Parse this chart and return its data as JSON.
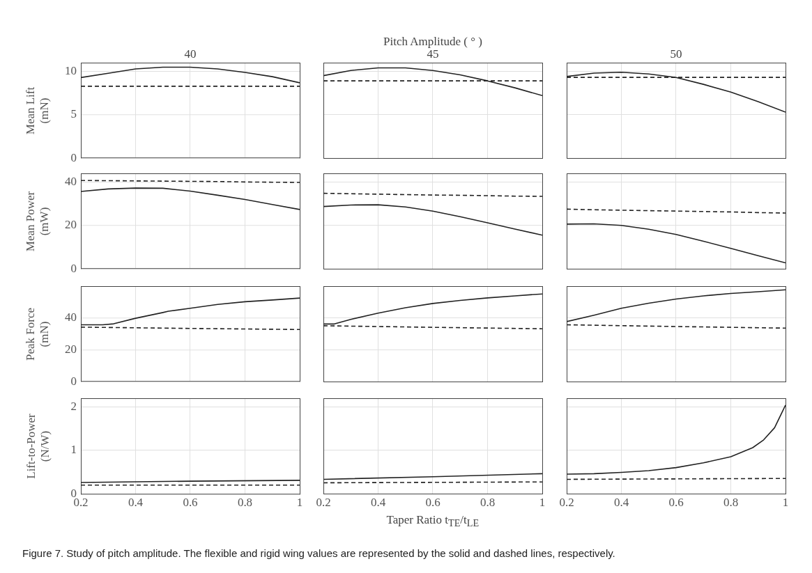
{
  "chart_data": [
    {
      "type": "line",
      "title": null,
      "subtitle": "40",
      "ylabel": "Mean Lift (mN)",
      "x": [
        0.2,
        0.3,
        0.4,
        0.5,
        0.6,
        0.7,
        0.8,
        0.9,
        1
      ],
      "xlim": [
        0.2,
        1
      ],
      "xticks": [
        0.2,
        0.4,
        0.6,
        0.8,
        1
      ],
      "ylim": [
        0,
        11
      ],
      "yticks": [
        0,
        5,
        10
      ],
      "grid": true,
      "marker": "none",
      "tick_labels": "y",
      "series": [
        {
          "color": "#222222",
          "line_style": "solid",
          "values": [
            9.3,
            9.8,
            10.3,
            10.5,
            10.5,
            10.3,
            9.9,
            9.4,
            8.7
          ]
        },
        {
          "color": "#222222",
          "line_style": "dashed",
          "values": [
            8.3,
            8.3,
            8.3,
            8.3,
            8.3,
            8.3,
            8.3,
            8.3,
            8.3
          ]
        }
      ]
    },
    {
      "type": "line",
      "title": "Pitch Amplitude ( ° )",
      "subtitle": "45",
      "x": [
        0.2,
        0.3,
        0.4,
        0.5,
        0.6,
        0.7,
        0.8,
        0.9,
        1
      ],
      "xlim": [
        0.2,
        1
      ],
      "xticks": [
        0.2,
        0.4,
        0.6,
        0.8,
        1
      ],
      "ylim": [
        0,
        11
      ],
      "yticks": [
        0,
        5,
        10
      ],
      "grid": true,
      "marker": "none",
      "tick_labels": false,
      "series": [
        {
          "color": "#222222",
          "line_style": "solid",
          "values": [
            9.5,
            10.1,
            10.4,
            10.4,
            10.1,
            9.6,
            8.9,
            8.1,
            7.2
          ]
        },
        {
          "color": "#222222",
          "line_style": "dashed",
          "values": [
            8.9,
            8.9,
            8.9,
            8.9,
            8.9,
            8.9,
            8.9,
            8.9,
            8.9
          ]
        }
      ]
    },
    {
      "type": "line",
      "subtitle": "50",
      "x": [
        0.2,
        0.3,
        0.4,
        0.5,
        0.6,
        0.7,
        0.8,
        0.9,
        1
      ],
      "xlim": [
        0.2,
        1
      ],
      "xticks": [
        0.2,
        0.4,
        0.6,
        0.8,
        1
      ],
      "ylim": [
        0,
        11
      ],
      "yticks": [
        0,
        5,
        10
      ],
      "grid": true,
      "marker": "none",
      "tick_labels": false,
      "series": [
        {
          "color": "#222222",
          "line_style": "solid",
          "values": [
            9.4,
            9.8,
            9.9,
            9.7,
            9.3,
            8.5,
            7.6,
            6.5,
            5.3
          ]
        },
        {
          "color": "#222222",
          "line_style": "dashed",
          "values": [
            9.3,
            9.3,
            9.3,
            9.3,
            9.3,
            9.3,
            9.3,
            9.3,
            9.3
          ]
        }
      ]
    },
    {
      "type": "line",
      "ylabel": "Mean Power (mW)",
      "x": [
        0.2,
        0.3,
        0.4,
        0.5,
        0.6,
        0.7,
        0.8,
        0.9,
        1
      ],
      "xlim": [
        0.2,
        1
      ],
      "xticks": [
        0.2,
        0.4,
        0.6,
        0.8,
        1
      ],
      "ylim": [
        0,
        44
      ],
      "yticks": [
        0,
        20,
        40
      ],
      "grid": true,
      "marker": "none",
      "tick_labels": "y",
      "series": [
        {
          "color": "#222222",
          "line_style": "solid",
          "values": [
            35.7,
            36.9,
            37.3,
            37.2,
            35.9,
            34,
            32,
            29.7,
            27.4
          ]
        },
        {
          "color": "#222222",
          "line_style": "dashed",
          "values": [
            40.8,
            40.7,
            40.6,
            40.5,
            40.4,
            40.3,
            40.1,
            40,
            39.9
          ]
        }
      ]
    },
    {
      "type": "line",
      "x": [
        0.2,
        0.3,
        0.4,
        0.5,
        0.6,
        0.7,
        0.8,
        0.9,
        1
      ],
      "xlim": [
        0.2,
        1
      ],
      "xticks": [
        0.2,
        0.4,
        0.6,
        0.8,
        1
      ],
      "ylim": [
        0,
        44
      ],
      "yticks": [
        0,
        20,
        40
      ],
      "grid": true,
      "marker": "none",
      "tick_labels": false,
      "series": [
        {
          "color": "#222222",
          "line_style": "solid",
          "values": [
            28.7,
            29.4,
            29.5,
            28.5,
            26.6,
            24,
            21.2,
            18.3,
            15.5
          ]
        },
        {
          "color": "#222222",
          "line_style": "dashed",
          "values": [
            34.8,
            34.6,
            34.4,
            34.2,
            34,
            33.9,
            33.7,
            33.5,
            33.4
          ]
        }
      ]
    },
    {
      "type": "line",
      "x": [
        0.2,
        0.3,
        0.4,
        0.5,
        0.6,
        0.7,
        0.8,
        0.9,
        1
      ],
      "xlim": [
        0.2,
        1
      ],
      "xticks": [
        0.2,
        0.4,
        0.6,
        0.8,
        1
      ],
      "ylim": [
        0,
        44
      ],
      "yticks": [
        0,
        20,
        40
      ],
      "grid": true,
      "marker": "none",
      "tick_labels": false,
      "series": [
        {
          "color": "#222222",
          "line_style": "solid",
          "values": [
            20.6,
            20.7,
            20,
            18.2,
            15.8,
            12.7,
            9.4,
            6,
            2.7
          ]
        },
        {
          "color": "#222222",
          "line_style": "dashed",
          "values": [
            27.5,
            27.2,
            27,
            26.8,
            26.6,
            26.4,
            26.2,
            25.9,
            25.7
          ]
        }
      ]
    },
    {
      "type": "line",
      "ylabel": "Peak Force (mN)",
      "xlim": [
        0.2,
        1
      ],
      "xticks": [
        0.2,
        0.4,
        0.6,
        0.8,
        1
      ],
      "ylim": [
        0,
        60
      ],
      "yticks": [
        0,
        20,
        40
      ],
      "grid": true,
      "marker": "none",
      "tick_labels": "y",
      "series": [
        {
          "color": "#222222",
          "line_style": "solid",
          "x": [
            0.2,
            0.28,
            0.32,
            0.4,
            0.5,
            0.52,
            0.6,
            0.7,
            0.8,
            0.9,
            1
          ],
          "values": [
            35.8,
            35.8,
            36.4,
            39.9,
            43.5,
            44.3,
            46.2,
            48.6,
            50.3,
            51.4,
            52.6
          ]
        },
        {
          "color": "#222222",
          "line_style": "dashed",
          "x": [
            0.2,
            0.6,
            1
          ],
          "values": [
            34.3,
            33.5,
            32.8
          ]
        }
      ]
    },
    {
      "type": "line",
      "xlim": [
        0.2,
        1
      ],
      "xticks": [
        0.2,
        0.4,
        0.6,
        0.8,
        1
      ],
      "ylim": [
        0,
        60
      ],
      "yticks": [
        0,
        20,
        40
      ],
      "grid": true,
      "marker": "none",
      "tick_labels": false,
      "series": [
        {
          "color": "#222222",
          "line_style": "solid",
          "x": [
            0.2,
            0.24,
            0.3,
            0.4,
            0.5,
            0.6,
            0.7,
            0.8,
            0.9,
            1
          ],
          "values": [
            36.2,
            36.2,
            39.1,
            43,
            46.4,
            49.1,
            51,
            52.6,
            53.9,
            55.1
          ]
        },
        {
          "color": "#222222",
          "line_style": "dashed",
          "x": [
            0.2,
            0.6,
            1
          ],
          "values": [
            35.1,
            34.1,
            33.2
          ]
        }
      ]
    },
    {
      "type": "line",
      "xlim": [
        0.2,
        1
      ],
      "xticks": [
        0.2,
        0.4,
        0.6,
        0.8,
        1
      ],
      "ylim": [
        0,
        60
      ],
      "yticks": [
        0,
        20,
        40
      ],
      "grid": true,
      "marker": "none",
      "tick_labels": false,
      "series": [
        {
          "color": "#222222",
          "line_style": "solid",
          "x": [
            0.2,
            0.3,
            0.4,
            0.5,
            0.6,
            0.7,
            0.8,
            0.9,
            1
          ],
          "values": [
            37.7,
            41.7,
            46.1,
            49.3,
            51.9,
            53.9,
            55.4,
            56.5,
            57.7
          ]
        },
        {
          "color": "#222222",
          "line_style": "dashed",
          "x": [
            0.2,
            0.6,
            1
          ],
          "values": [
            35.7,
            34.6,
            33.6
          ]
        }
      ]
    },
    {
      "type": "line",
      "ylabel": "Lift-to-Power (N/W)",
      "xlim": [
        0.2,
        1
      ],
      "xticks": [
        0.2,
        0.4,
        0.6,
        0.8,
        1
      ],
      "ylim": [
        0,
        2.2
      ],
      "yticks": [
        0,
        1,
        2
      ],
      "grid": true,
      "marker": "none",
      "series": [
        {
          "color": "#222222",
          "line_style": "solid",
          "x": [
            0.2,
            0.6,
            1
          ],
          "values": [
            0.26,
            0.29,
            0.31
          ]
        },
        {
          "color": "#222222",
          "line_style": "dashed",
          "x": [
            0.2,
            0.6,
            1
          ],
          "values": [
            0.2,
            0.2,
            0.2
          ]
        }
      ]
    },
    {
      "type": "line",
      "xlabel": "Taper Ratio t$_{TE}$/t$_{LE}$",
      "annotations": [
        "Figure 7.  Study of pitch amplitude. The flexible and rigid wing values are represented by the solid and dashed lines, respectively."
      ],
      "xlim": [
        0.2,
        1
      ],
      "xticks": [
        0.2,
        0.4,
        0.6,
        0.8,
        1
      ],
      "ylim": [
        0,
        2.2
      ],
      "yticks": [
        0,
        1,
        2
      ],
      "grid": true,
      "marker": "none",
      "tick_labels": "x",
      "series": [
        {
          "color": "#222222",
          "line_style": "solid",
          "x": [
            0.2,
            0.6,
            1
          ],
          "values": [
            0.33,
            0.39,
            0.46
          ]
        },
        {
          "color": "#222222",
          "line_style": "dashed",
          "x": [
            0.2,
            0.6,
            1
          ],
          "values": [
            0.25,
            0.26,
            0.27
          ]
        }
      ]
    },
    {
      "type": "line",
      "xlim": [
        0.2,
        1
      ],
      "xticks": [
        0.2,
        0.4,
        0.6,
        0.8,
        1
      ],
      "ylim": [
        0,
        2.2
      ],
      "yticks": [
        0,
        1,
        2
      ],
      "grid": true,
      "marker": "none",
      "tick_labels": "x",
      "series": [
        {
          "color": "#222222",
          "line_style": "solid",
          "x": [
            0.2,
            0.3,
            0.4,
            0.5,
            0.6,
            0.7,
            0.8,
            0.88,
            0.92,
            0.96,
            1
          ],
          "values": [
            0.45,
            0.46,
            0.49,
            0.53,
            0.6,
            0.71,
            0.85,
            1.06,
            1.24,
            1.52,
            2.04
          ]
        },
        {
          "color": "#222222",
          "line_style": "dashed",
          "x": [
            0.2,
            0.6,
            1
          ],
          "values": [
            0.33,
            0.34,
            0.35
          ]
        }
      ]
    }
  ]
}
